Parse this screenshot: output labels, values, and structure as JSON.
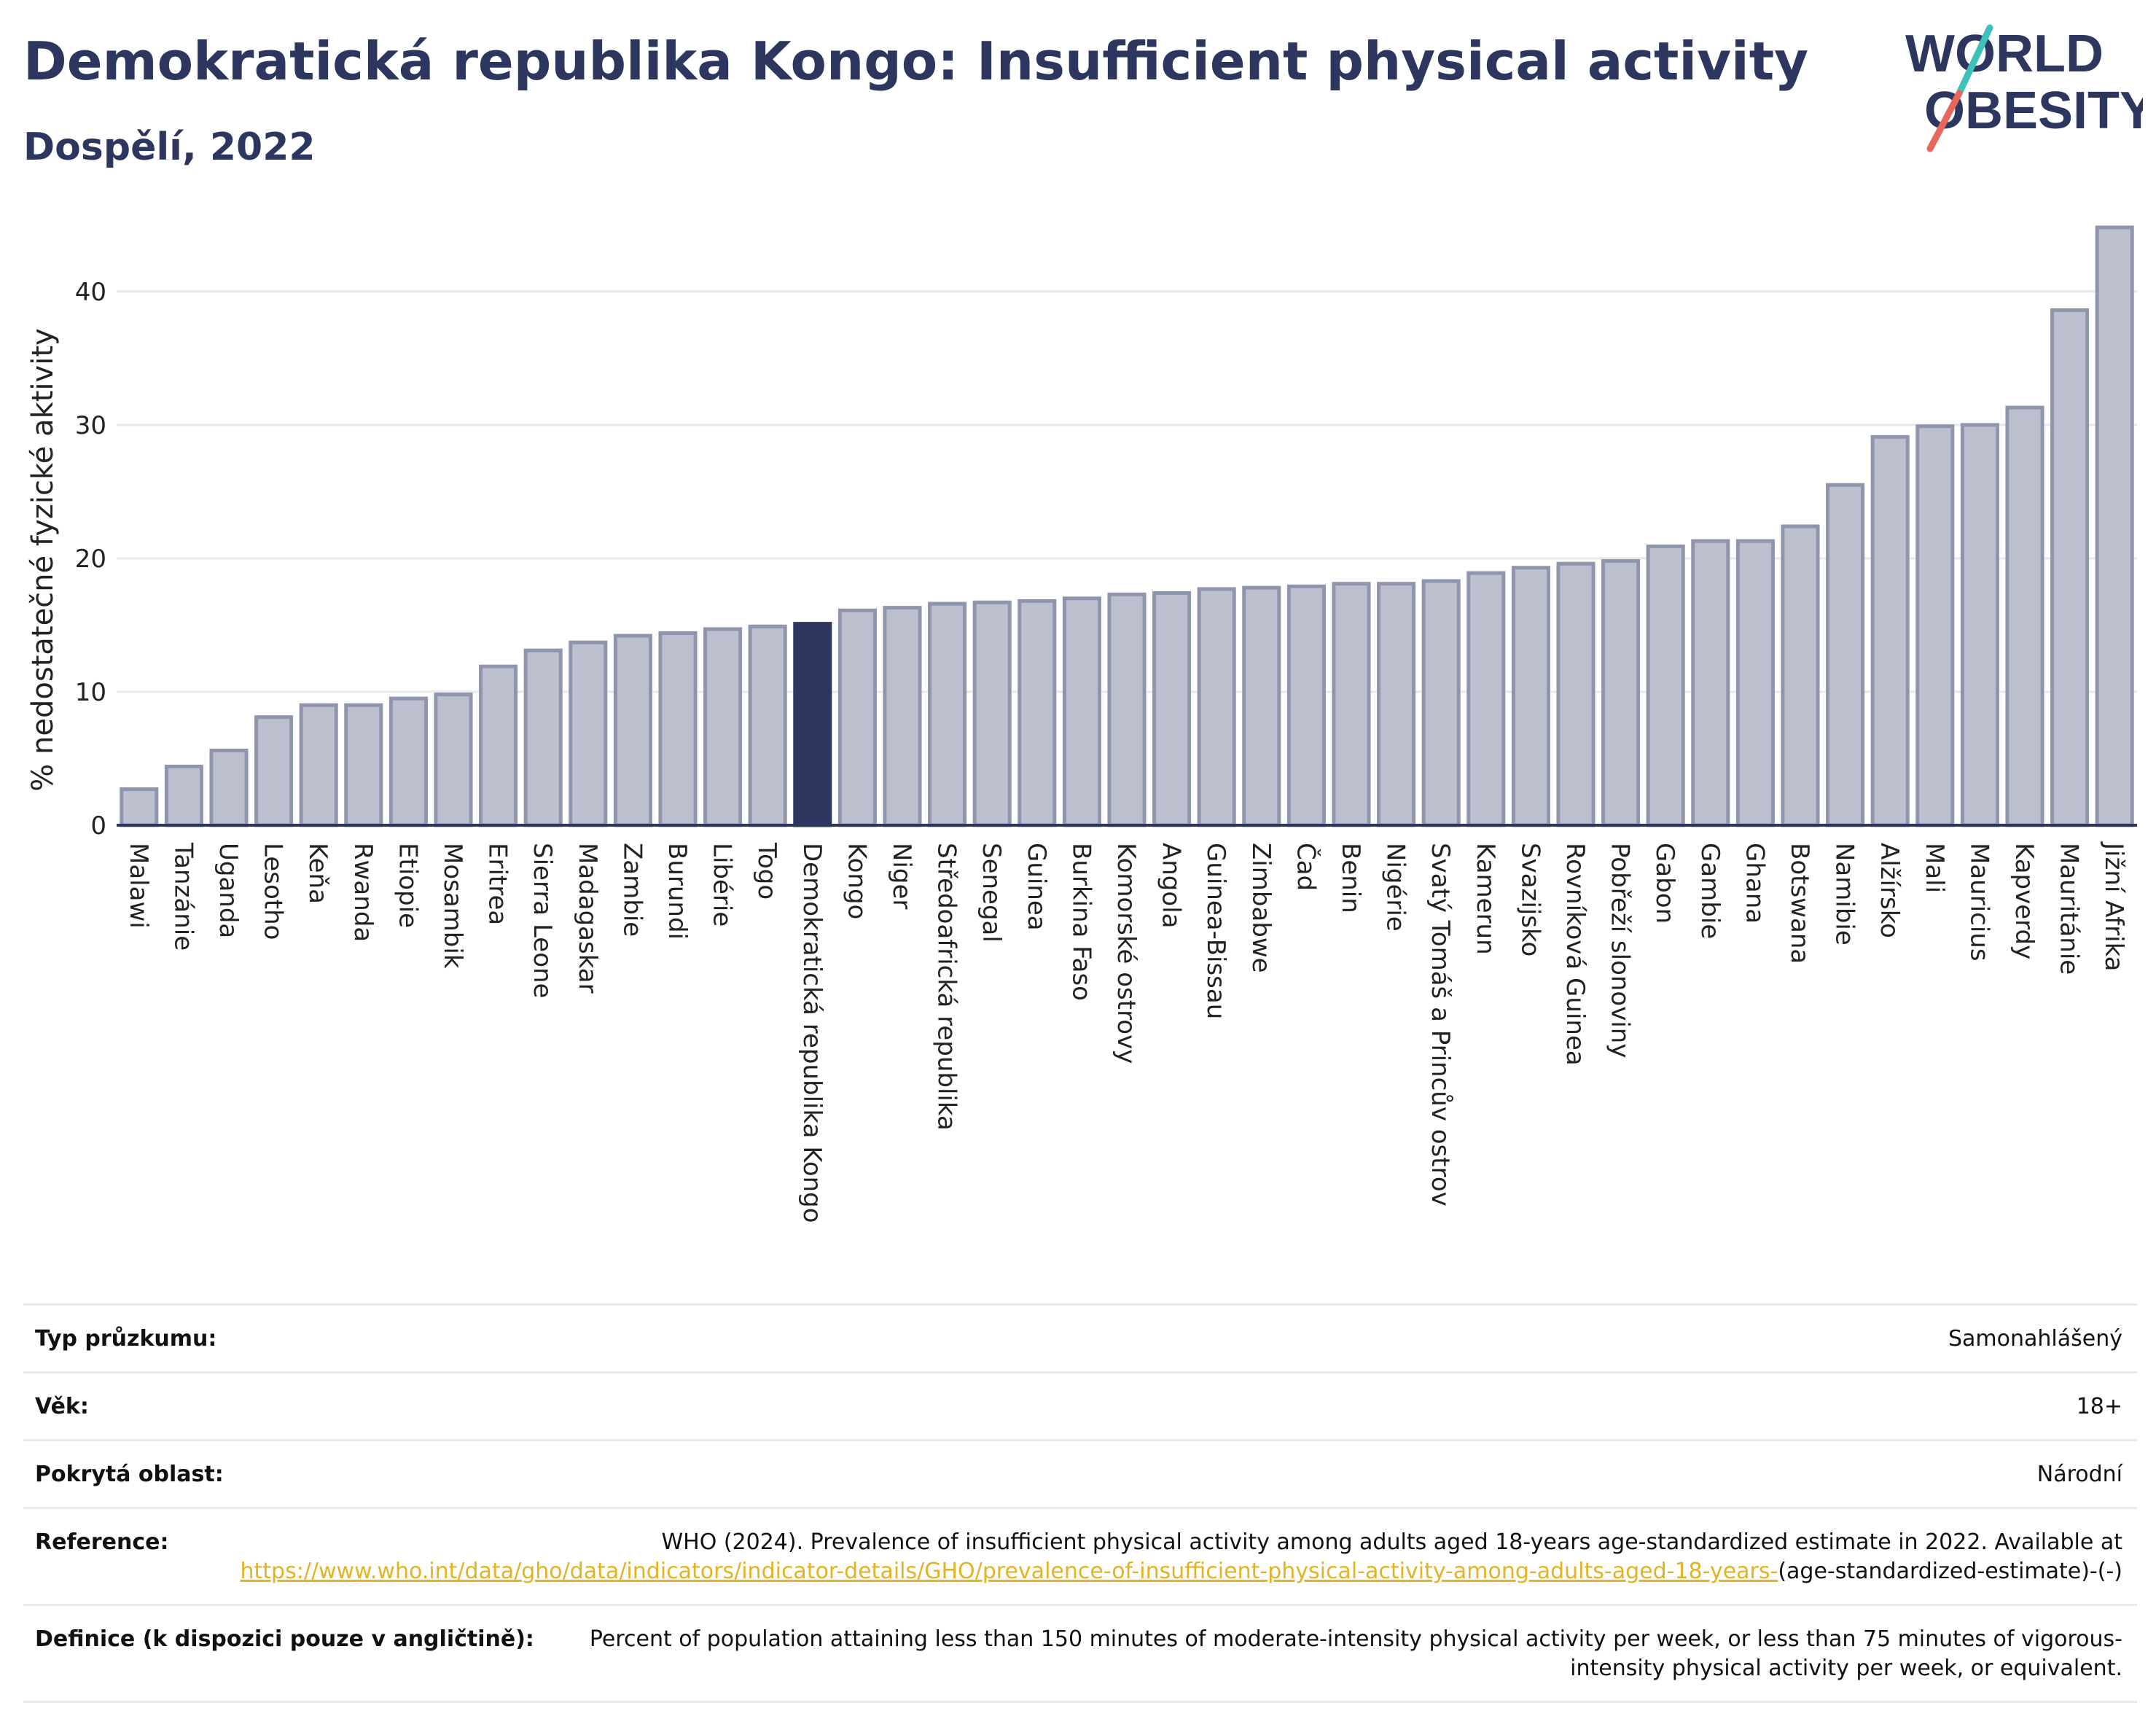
{
  "header": {
    "title": "Demokratická republika Kongo: Insufficient physical activity",
    "subtitle": "Dospělí, 2022"
  },
  "logo": {
    "line1": "WORLD",
    "line2": "OBESITY"
  },
  "colors": {
    "bar": "#bcc0ce",
    "bar_stroke": "#8f95ad",
    "highlight": "#2c365e",
    "gridline": "#e8e8ec",
    "logo_text": "#2c365e",
    "logo_teal": "#3ec1b8",
    "logo_coral": "#e5685a",
    "link": "#e3b324"
  },
  "chart_data": {
    "type": "bar",
    "ylabel": "% nedostatečné fyzické aktivity",
    "xlabel": "",
    "ylim": [
      0,
      46
    ],
    "yticks": [
      0,
      10,
      20,
      30,
      40
    ],
    "grid": true,
    "highlighted_category": "Demokratická republika Kongo",
    "categories": [
      "Malawi",
      "Tanzánie",
      "Uganda",
      "Lesotho",
      "Keňa",
      "Rwanda",
      "Etiopie",
      "Mosambik",
      "Eritrea",
      "Sierra Leone",
      "Madagaskar",
      "Zambie",
      "Burundi",
      "Libérie",
      "Togo",
      "Demokratická republika Kongo",
      "Kongo",
      "Niger",
      "Středoafrická republika",
      "Senegal",
      "Guinea",
      "Burkina Faso",
      "Komorské ostrovy",
      "Angola",
      "Guinea-Bissau",
      "Zimbabwe",
      "Čad",
      "Benin",
      "Nigérie",
      "Svatý Tomáš a Princův ostrov",
      "Kamerun",
      "Svazijsko",
      "Rovníková Guinea",
      "Pobřeží slonoviny",
      "Gabon",
      "Gambie",
      "Ghana",
      "Botswana",
      "Namibie",
      "Alžírsko",
      "Mali",
      "Mauricius",
      "Kapverdy",
      "Mauritánie",
      "Jižní Afrika"
    ],
    "values": [
      2.7,
      4.4,
      5.6,
      8.1,
      9.0,
      9.0,
      9.5,
      9.8,
      11.9,
      13.1,
      13.7,
      14.2,
      14.4,
      14.7,
      14.9,
      15.1,
      16.1,
      16.3,
      16.6,
      16.7,
      16.8,
      17.0,
      17.3,
      17.4,
      17.7,
      17.8,
      17.9,
      18.1,
      18.1,
      18.3,
      18.9,
      19.3,
      19.6,
      19.8,
      20.9,
      21.3,
      21.3,
      22.4,
      25.5,
      29.1,
      29.9,
      30.0,
      31.3,
      38.6,
      44.8
    ]
  },
  "info": {
    "rows": [
      {
        "label": "Typ průzkumu:",
        "value": "Samonahlášený"
      },
      {
        "label": "Věk:",
        "value": "18+"
      },
      {
        "label": "Pokrytá oblast:",
        "value": "Národní"
      }
    ],
    "reference": {
      "label": "Reference:",
      "text": "WHO (2024). Prevalence of insufficient physical activity among adults aged 18-years age-standardized estimate in 2022. Available at",
      "link": "https://www.who.int/data/gho/data/indicators/indicator-details/GHO/prevalence-of-insufficient-physical-activity-among-adults-aged-18-years-",
      "suffix": "(age-standardized-estimate)-(-)"
    },
    "definition": {
      "label": "Definice (k dispozici pouze v angličtině):",
      "value": "Percent of population attaining less than 150 minutes of moderate-intensity physical activity per week, or less than 75 minutes of vigorous-intensity physical activity per week, or equivalent."
    }
  }
}
